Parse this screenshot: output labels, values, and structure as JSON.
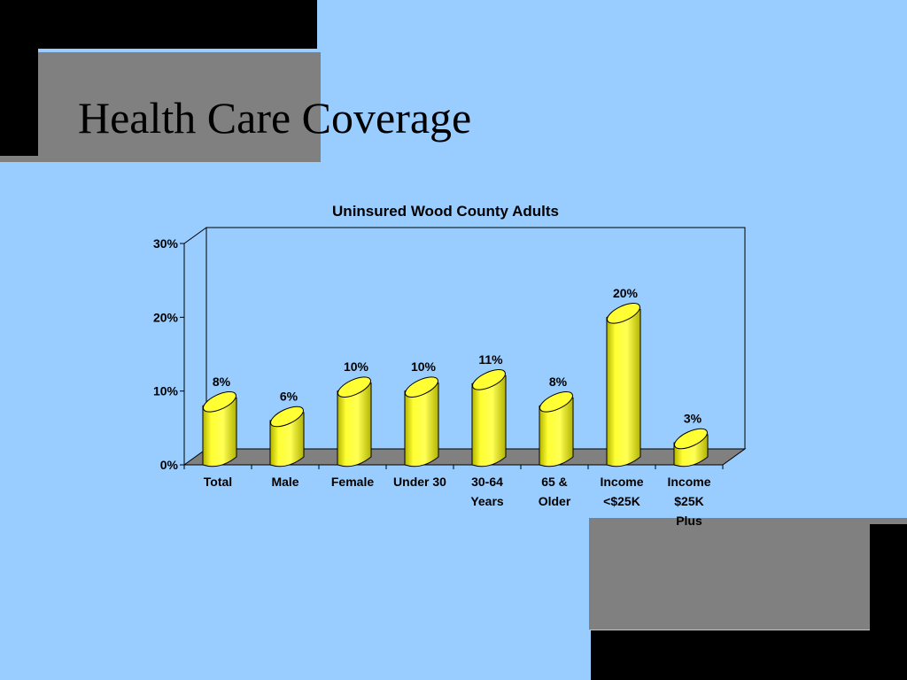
{
  "slide": {
    "title": "Health Care Coverage"
  },
  "colors": {
    "background": "#99ccff",
    "bar_fill": "#ffff33",
    "bar_shade": "#b3b300",
    "floor": "#808080",
    "corner": "#000000"
  },
  "chart_data": {
    "type": "bar",
    "title": "Uninsured Wood County Adults",
    "categories": [
      [
        "Total"
      ],
      [
        "Male"
      ],
      [
        "Female"
      ],
      [
        "Under 30"
      ],
      [
        "30-64",
        "Years"
      ],
      [
        "65 &",
        "Older"
      ],
      [
        "Income",
        "<$25K"
      ],
      [
        "Income",
        "$25K",
        "Plus"
      ]
    ],
    "values": [
      8,
      6,
      10,
      10,
      11,
      8,
      20,
      3
    ],
    "data_labels": [
      "8%",
      "6%",
      "10%",
      "10%",
      "11%",
      "8%",
      "20%",
      "3%"
    ],
    "y_ticks": [
      0,
      10,
      20,
      30
    ],
    "y_tick_labels": [
      "0%",
      "10%",
      "20%",
      "30%"
    ],
    "ylim": [
      0,
      30
    ],
    "xlabel": "",
    "ylabel": "",
    "grid": false,
    "legend": "none",
    "style": "3d-cylinder"
  }
}
